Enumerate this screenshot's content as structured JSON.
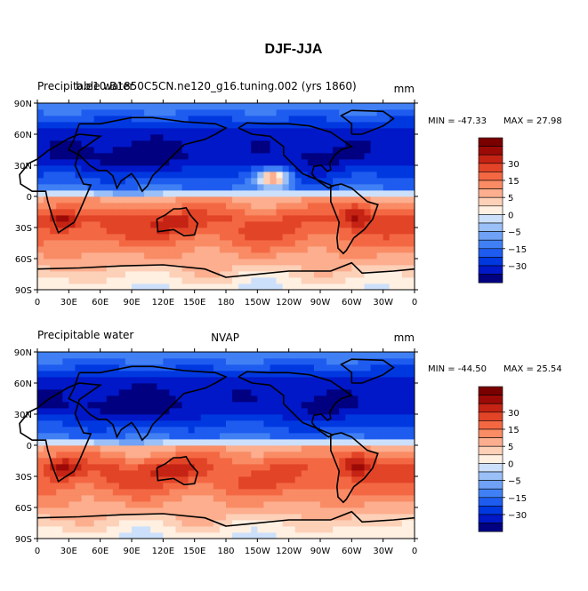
{
  "page": {
    "title": "DJF-JJA"
  },
  "palette": [
    "#000080",
    "#0018c8",
    "#0038e0",
    "#1e5cf0",
    "#4080f4",
    "#6fa1f6",
    "#9bc0f8",
    "#cde0fb",
    "#fff0e2",
    "#fdd0b8",
    "#fcae8e",
    "#f98b65",
    "#f36843",
    "#e24427",
    "#c52314",
    "#9c0a07",
    "#7a0000"
  ],
  "colorbar": {
    "labels": [
      "30",
      "15",
      "5",
      "0",
      "-5",
      "-15",
      "-30"
    ]
  },
  "chart_data": [
    {
      "type": "heatmap",
      "name": "model",
      "variable_label": "Precipitable water",
      "title": "b.e10.B1850C5CN.ne120_g16.tuning.002 (yrs 1860)",
      "units": "mm",
      "min_label": "MIN = -47.33",
      "max_label": "MAX =  27.98",
      "xticks": [
        "0",
        "30E",
        "60E",
        "90E",
        "120E",
        "150E",
        "180",
        "150W",
        "120W",
        "90W",
        "60W",
        "30W",
        "0"
      ],
      "yticks": [
        "90N",
        "60N",
        "30N",
        "0",
        "30S",
        "60S",
        "90S"
      ],
      "xlim": [
        0,
        360
      ],
      "ylim": [
        -90,
        90
      ]
    },
    {
      "type": "heatmap",
      "name": "obs",
      "variable_label": "Precipitable water",
      "title": "NVAP",
      "units": "mm",
      "min_label": "MIN = -44.50",
      "max_label": "MAX =  25.54",
      "xticks": [
        "0",
        "30E",
        "60E",
        "90E",
        "120E",
        "150E",
        "180",
        "150W",
        "120W",
        "90W",
        "60W",
        "30W",
        "0"
      ],
      "yticks": [
        "90N",
        "60N",
        "30N",
        "0",
        "30S",
        "60S",
        "90S"
      ],
      "xlim": [
        0,
        360
      ],
      "ylim": [
        -90,
        90
      ]
    }
  ]
}
